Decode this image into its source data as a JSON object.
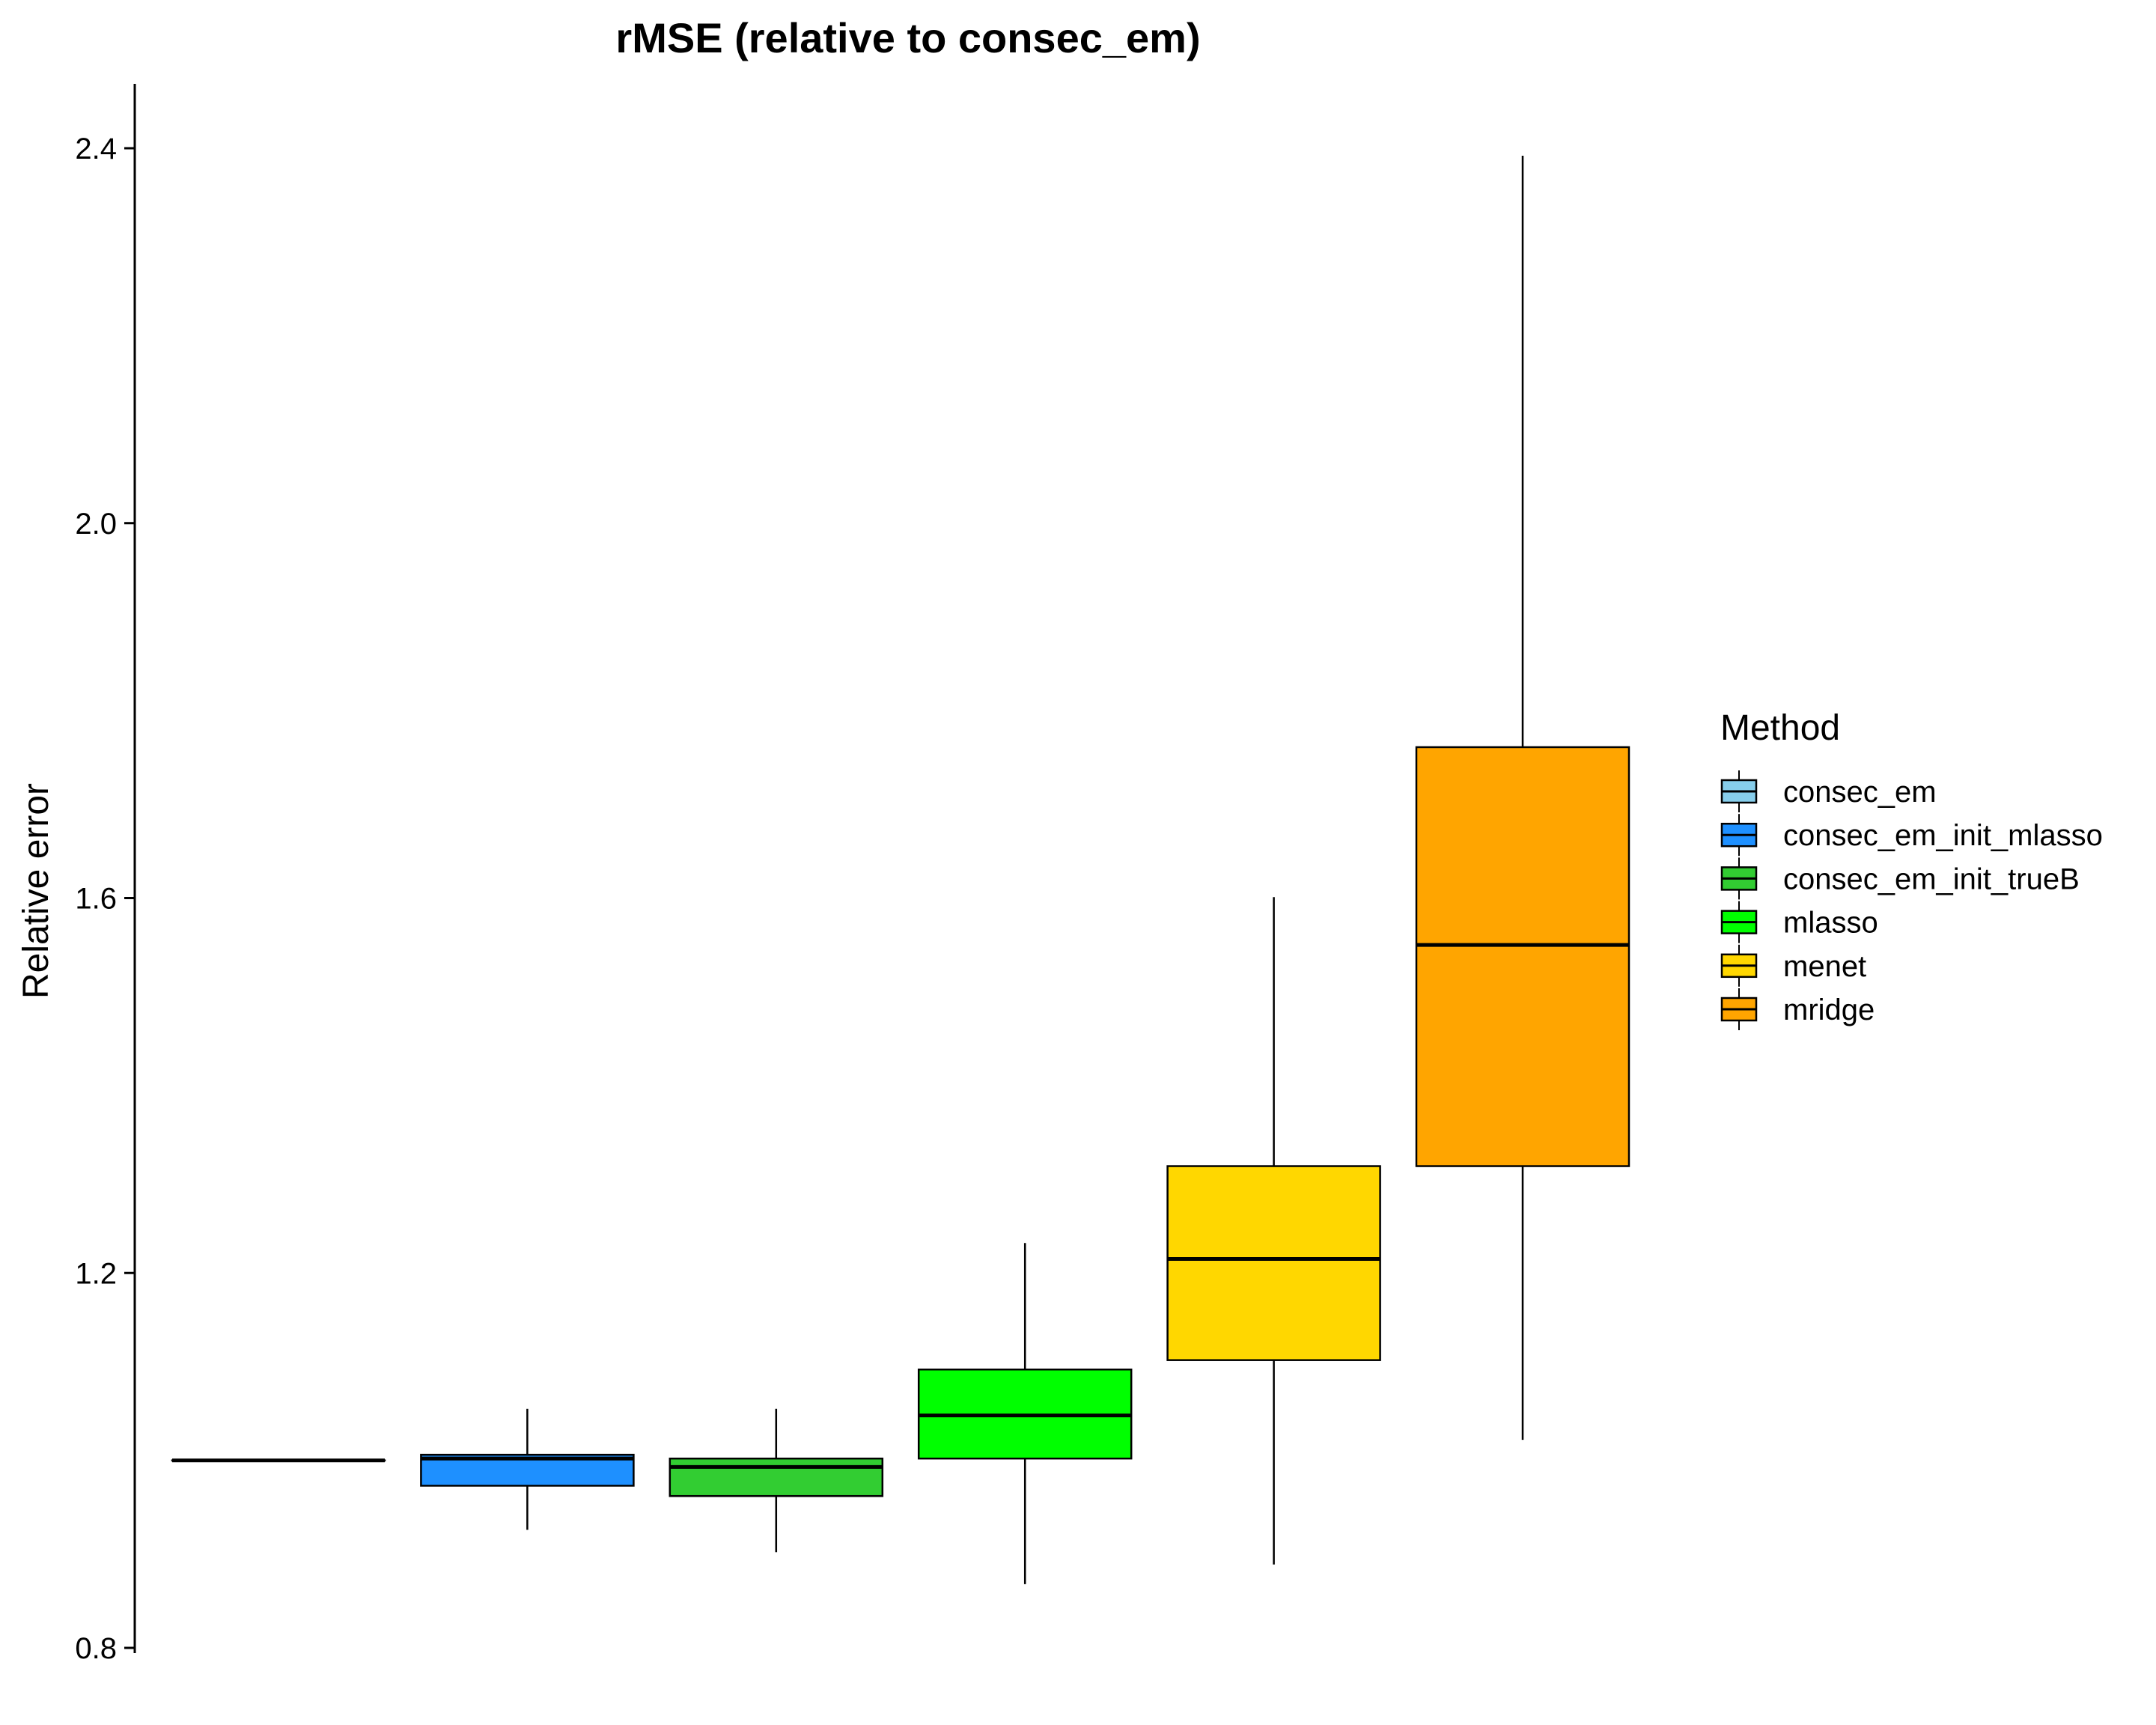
{
  "chart_data": {
    "type": "box",
    "title": "rMSE (relative to consec_em)",
    "xlabel": "",
    "ylabel": "Relative error",
    "ylim": [
      0.8,
      2.47
    ],
    "yticks": [
      0.8,
      1.2,
      1.6,
      2.0,
      2.4
    ],
    "ytick_labels": [
      "0.8",
      "1.2",
      "1.6",
      "2.0",
      "2.4"
    ],
    "grid": false,
    "legend": {
      "title": "Method",
      "position": "right"
    },
    "series": [
      {
        "name": "consec_em",
        "color": "#87CEEB",
        "min": 1.0,
        "q1": 1.0,
        "median": 1.0,
        "q3": 1.0,
        "max": 1.0
      },
      {
        "name": "consec_em_init_mlasso",
        "color": "#1E90FF",
        "min": 0.926,
        "q1": 0.973,
        "median": 1.002,
        "q3": 1.006,
        "max": 1.055
      },
      {
        "name": "consec_em_init_trueB",
        "color": "#32CD32",
        "min": 0.902,
        "q1": 0.962,
        "median": 0.993,
        "q3": 1.002,
        "max": 1.055
      },
      {
        "name": "mlasso",
        "color": "#00FF00",
        "min": 0.868,
        "q1": 1.002,
        "median": 1.048,
        "q3": 1.097,
        "max": 1.232
      },
      {
        "name": "menet",
        "color": "#FFD700",
        "min": 0.889,
        "q1": 1.107,
        "median": 1.215,
        "q3": 1.314,
        "max": 1.601
      },
      {
        "name": "mridge",
        "color": "#FFA500",
        "min": 1.022,
        "q1": 1.314,
        "median": 1.55,
        "q3": 1.761,
        "max": 2.392
      }
    ]
  }
}
